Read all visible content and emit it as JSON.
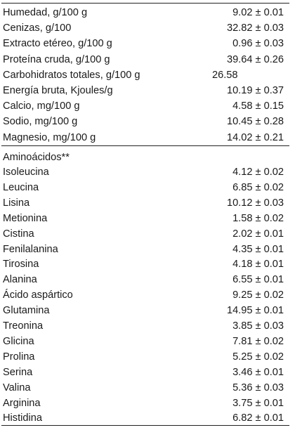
{
  "composition": [
    {
      "label": "Humedad, g/100 g",
      "value": "9.02 ± 0.01"
    },
    {
      "label": "Cenizas, g/100",
      "value": "32.82 ± 0.03"
    },
    {
      "label": "Extracto etéreo, g/100 g",
      "value": "0.96 ± 0.03"
    },
    {
      "label": "Proteína cruda, g/100 g",
      "value": "39.64 ± 0.26"
    },
    {
      "label": "Carbohidratos totales, g/100 g",
      "value": "26.58"
    },
    {
      "label": "Energía bruta, Kjoules/g",
      "value": "10.19 ± 0.37"
    },
    {
      "label": "Calcio, mg/100 g",
      "value": "4.58 ± 0.15"
    },
    {
      "label": "Sodio, mg/100 g",
      "value": "10.45 ± 0.28"
    },
    {
      "label": "Magnesio, mg/100 g",
      "value": "14.02 ± 0.21"
    }
  ],
  "amino_title": "Aminoácidos**",
  "amino_acids": [
    {
      "label": "Isoleucina",
      "value": "4.12 ± 0.02"
    },
    {
      "label": "Leucina",
      "value": "6.85 ± 0.02"
    },
    {
      "label": "Lisina",
      "value": "10.12 ± 0.03"
    },
    {
      "label": "Metionina",
      "value": "1.58 ± 0.02"
    },
    {
      "label": "Cistina",
      "value": "2.02 ± 0.01"
    },
    {
      "label": "Fenilalanina",
      "value": "4.35 ± 0.01"
    },
    {
      "label": "Tirosina",
      "value": "4.18 ± 0.01"
    },
    {
      "label": "Alanina",
      "value": "6.55 ± 0.01"
    },
    {
      "label": "Ácido aspártico",
      "value": "9.25 ± 0.02"
    },
    {
      "label": "Glutamina",
      "value": "14.95 ± 0.01"
    },
    {
      "label": "Treonina",
      "value": "3.85 ± 0.03"
    },
    {
      "label": "Glicina",
      "value": "7.81 ± 0.02"
    },
    {
      "label": "Prolina",
      "value": "5.25 ± 0.02"
    },
    {
      "label": "Serina",
      "value": "3.46 ± 0.01"
    },
    {
      "label": "Valina",
      "value": "5.36 ± 0.03"
    },
    {
      "label": "Arginina",
      "value": "3.75 ± 0.01"
    },
    {
      "label": "Histidina",
      "value": "6.82 ± 0.01"
    }
  ]
}
